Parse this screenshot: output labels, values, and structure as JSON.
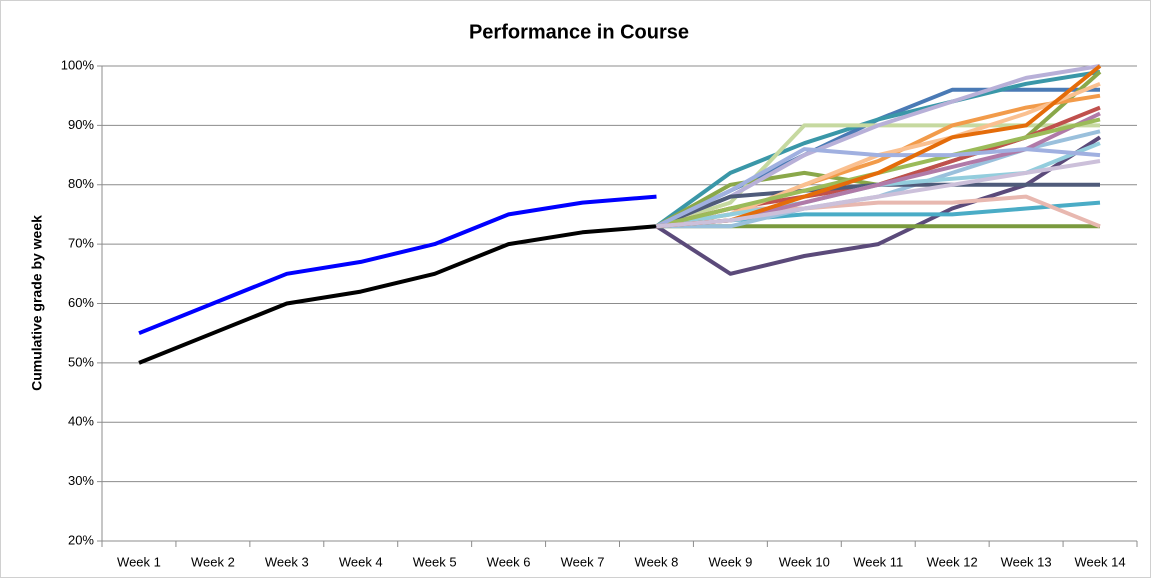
{
  "chart_data": {
    "type": "line",
    "title": "Performance in Course",
    "y_label": "Cumulative grade by week",
    "categories": [
      "Week 1",
      "Week 2",
      "Week 3",
      "Week 4",
      "Week 5",
      "Week 6",
      "Week 7",
      "Week 8",
      "Week 9",
      "Week 10",
      "Week 11",
      "Week 12",
      "Week 13",
      "Week 14"
    ],
    "ylim": [
      20,
      100
    ],
    "yticks": [
      {
        "value": 20,
        "label": "20%"
      },
      {
        "value": 30,
        "label": "30%"
      },
      {
        "value": 40,
        "label": "40%"
      },
      {
        "value": 50,
        "label": "50%"
      },
      {
        "value": 60,
        "label": "60%"
      },
      {
        "value": 70,
        "label": "70%"
      },
      {
        "value": 80,
        "label": "80%"
      },
      {
        "value": 90,
        "label": "90%"
      },
      {
        "value": 100,
        "label": "100%"
      }
    ],
    "grid": true,
    "series": [
      {
        "color": "#0000ff",
        "values": [
          55,
          60,
          65,
          67,
          70,
          75,
          77,
          78,
          null,
          null,
          null,
          null,
          null,
          null
        ]
      },
      {
        "color": "#000000",
        "values": [
          50,
          55,
          60,
          62,
          65,
          70,
          72,
          73,
          null,
          null,
          null,
          null,
          null,
          null
        ]
      },
      {
        "color": "#4a7ab5",
        "values": [
          null,
          null,
          null,
          null,
          null,
          null,
          null,
          73,
          79,
          85,
          91,
          96,
          96,
          96
        ]
      },
      {
        "color": "#3a97a8",
        "values": [
          null,
          null,
          null,
          null,
          null,
          null,
          null,
          73,
          82,
          87,
          91,
          94,
          97,
          99
        ]
      },
      {
        "color": "#c6d9a0",
        "values": [
          null,
          null,
          null,
          null,
          null,
          null,
          null,
          73,
          77,
          90,
          90,
          90,
          90,
          90
        ]
      },
      {
        "color": "#5b4a7a",
        "values": [
          null,
          null,
          null,
          null,
          null,
          null,
          null,
          73,
          65,
          68,
          70,
          76,
          80,
          88
        ]
      },
      {
        "color": "#7a9a3e",
        "values": [
          null,
          null,
          null,
          null,
          null,
          null,
          null,
          73,
          73,
          73,
          73,
          73,
          73,
          73
        ]
      },
      {
        "color": "#4aacc6",
        "values": [
          null,
          null,
          null,
          null,
          null,
          null,
          null,
          73,
          74,
          75,
          75,
          75,
          76,
          77
        ]
      },
      {
        "color": "#8aa84a",
        "values": [
          null,
          null,
          null,
          null,
          null,
          null,
          null,
          73,
          80,
          82,
          80,
          84,
          88,
          99
        ]
      },
      {
        "color": "#f29b4a",
        "values": [
          null,
          null,
          null,
          null,
          null,
          null,
          null,
          73,
          75,
          80,
          84,
          90,
          93,
          95
        ]
      },
      {
        "color": "#b8b0d8",
        "values": [
          null,
          null,
          null,
          null,
          null,
          null,
          null,
          73,
          78,
          85,
          90,
          94,
          98,
          100
        ]
      },
      {
        "color": "#e8b8b0",
        "values": [
          null,
          null,
          null,
          null,
          null,
          null,
          null,
          73,
          76,
          76,
          77,
          77,
          78,
          73
        ]
      },
      {
        "color": "#9ac0dc",
        "values": [
          null,
          null,
          null,
          null,
          null,
          null,
          null,
          73,
          73,
          76,
          78,
          82,
          86,
          89
        ]
      },
      {
        "color": "#c0504d",
        "values": [
          null,
          null,
          null,
          null,
          null,
          null,
          null,
          73,
          76,
          78,
          80,
          84,
          88,
          93
        ]
      },
      {
        "color": "#4f5b7a",
        "values": [
          null,
          null,
          null,
          null,
          null,
          null,
          null,
          73,
          78,
          79,
          80,
          80,
          80,
          80
        ]
      },
      {
        "color": "#fac090",
        "values": [
          null,
          null,
          null,
          null,
          null,
          null,
          null,
          73,
          75,
          80,
          85,
          88,
          92,
          97
        ]
      },
      {
        "color": "#93cddd",
        "values": [
          null,
          null,
          null,
          null,
          null,
          null,
          null,
          73,
          75,
          77,
          80,
          81,
          82,
          87
        ]
      },
      {
        "color": "#b07aa8",
        "values": [
          null,
          null,
          null,
          null,
          null,
          null,
          null,
          73,
          74,
          77,
          80,
          83,
          86,
          92
        ]
      },
      {
        "color": "#9bbb59",
        "values": [
          null,
          null,
          null,
          null,
          null,
          null,
          null,
          73,
          76,
          79,
          82,
          85,
          88,
          91
        ]
      },
      {
        "color": "#a0b0e0",
        "values": [
          null,
          null,
          null,
          null,
          null,
          null,
          null,
          73,
          79,
          86,
          85,
          85,
          86,
          85
        ]
      },
      {
        "color": "#e46c0a",
        "values": [
          null,
          null,
          null,
          null,
          null,
          null,
          null,
          73,
          74,
          78,
          82,
          88,
          90,
          100
        ]
      },
      {
        "color": "#ccc0da",
        "values": [
          null,
          null,
          null,
          null,
          null,
          null,
          null,
          73,
          74,
          76,
          78,
          80,
          82,
          84
        ]
      }
    ]
  }
}
